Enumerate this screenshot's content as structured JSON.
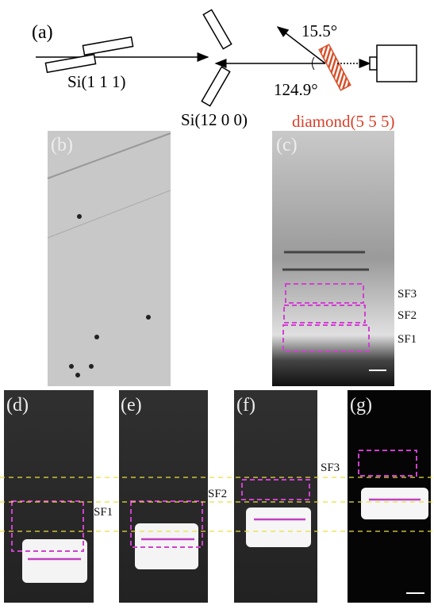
{
  "panel_a": {
    "label": "(a)",
    "crystal_1": "Si(1 1 1)",
    "crystal_2": "Si(12 0 0)",
    "crystal_3": "diamond(5 5 5)",
    "angle_1": "15.5°",
    "angle_2": "124.9°"
  },
  "panel_b": {
    "label": "(b)"
  },
  "panel_c": {
    "label": "(c)",
    "regions": [
      "SF3",
      "SF2",
      "SF1"
    ]
  },
  "panel_d": {
    "label": "(d)",
    "region": "SF1"
  },
  "panel_e": {
    "label": "(e)",
    "region": "SF2"
  },
  "panel_f": {
    "label": "(f)"
  },
  "panel_g": {
    "label": "(g)",
    "region": "SF3"
  }
}
